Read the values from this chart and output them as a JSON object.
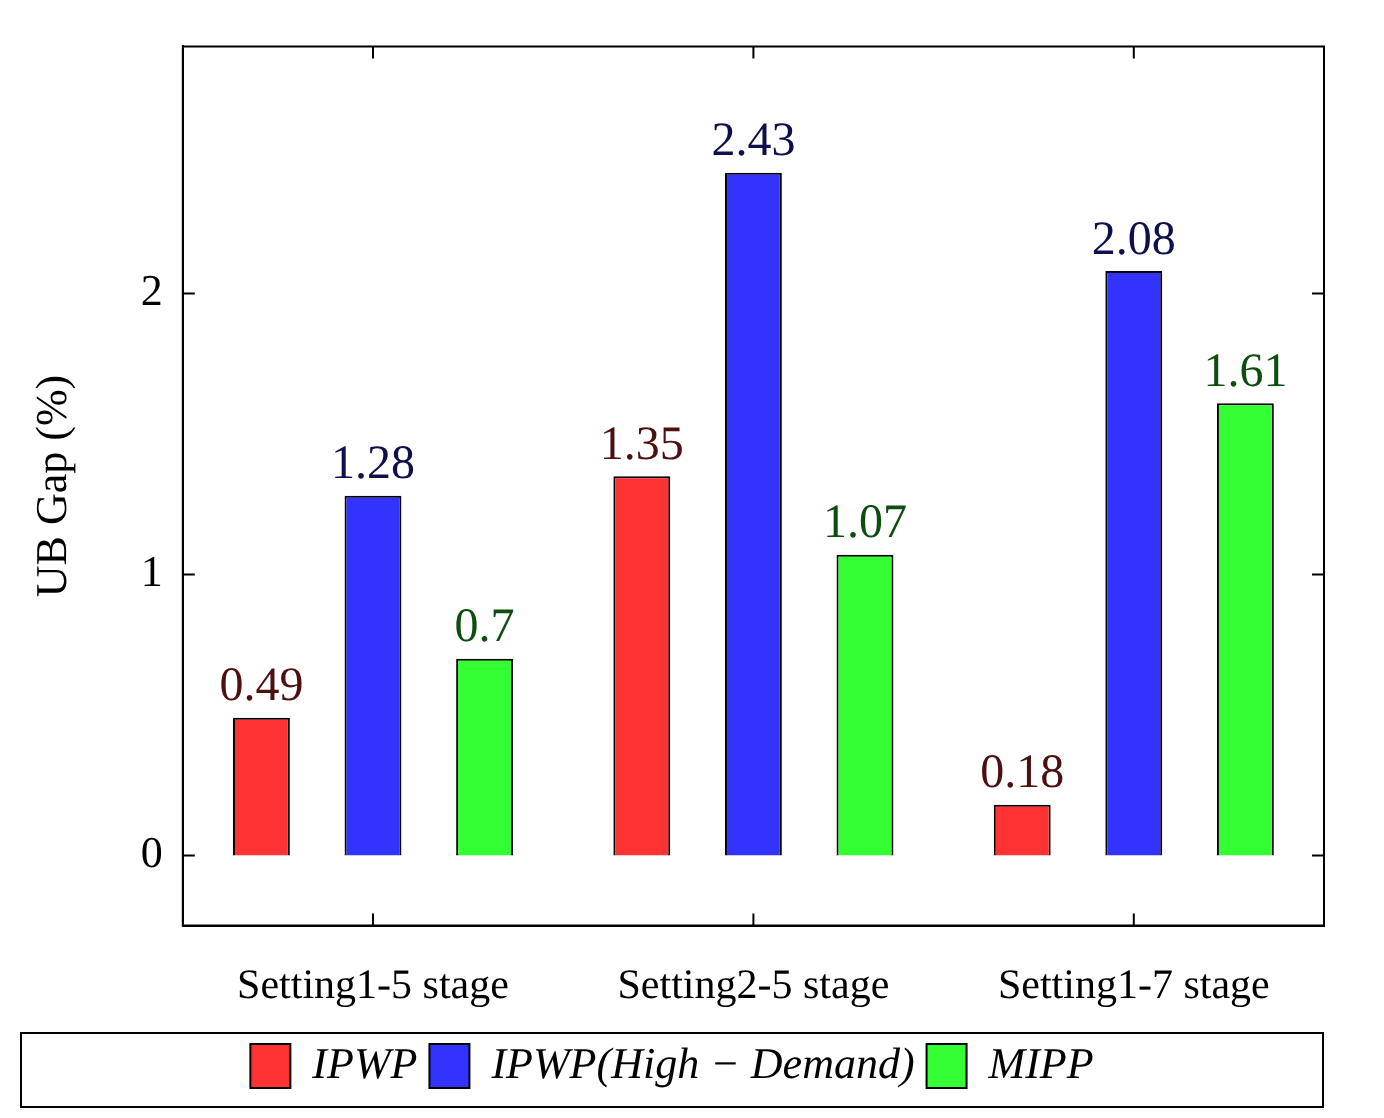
{
  "chart_data": {
    "type": "bar",
    "ylabel": "UB Gap (%)",
    "categories": [
      "Setting1-5 stage",
      "Setting2-5 stage",
      "Setting1-7 stage"
    ],
    "series": [
      {
        "name": "IPWP",
        "color": "#ff3333",
        "values": [
          0.49,
          1.35,
          0.18
        ]
      },
      {
        "name": "IPWP(High − Demand)",
        "color": "#3333ff",
        "values": [
          1.28,
          2.43,
          2.08
        ]
      },
      {
        "name": "MIPP",
        "color": "#33ff33",
        "values": [
          0.7,
          1.07,
          1.61
        ]
      }
    ],
    "ylim": [
      -0.25,
      2.88
    ],
    "yticks": [
      0,
      1,
      2
    ],
    "grid": false,
    "legend": "bottom",
    "data_labels": true
  }
}
